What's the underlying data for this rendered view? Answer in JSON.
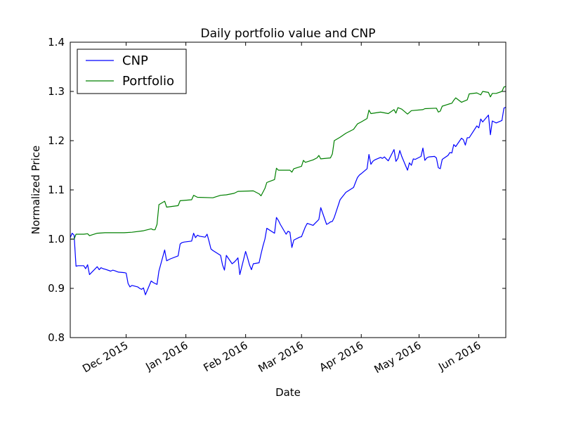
{
  "chart_data": {
    "type": "line",
    "title": "Daily portfolio value and CNP",
    "xlabel": "Date",
    "ylabel": "Normalized Price",
    "x_range": [
      "2015-11-02",
      "2016-06-15"
    ],
    "ylim": [
      0.8,
      1.4
    ],
    "y_ticks": [
      0.8,
      0.9,
      1.0,
      1.1,
      1.2,
      1.3,
      1.4
    ],
    "y_tick_labels": [
      "0.8",
      "0.9",
      "1.0",
      "1.1",
      "1.2",
      "1.3",
      "1.4"
    ],
    "x_ticks": [
      "2015-12-01",
      "2016-01-01",
      "2016-02-01",
      "2016-03-01",
      "2016-04-01",
      "2016-05-01",
      "2016-06-01"
    ],
    "x_tick_labels": [
      "Dec 2015",
      "Jan 2016",
      "Feb 2016",
      "Mar 2016",
      "Apr 2016",
      "May 2016",
      "Jun 2016"
    ],
    "grid": false,
    "legend": "upper-left",
    "series": [
      {
        "name": "CNP",
        "color": "#0000ff",
        "points": [
          [
            "2015-11-02",
            1.003
          ],
          [
            "2015-11-03",
            1.012
          ],
          [
            "2015-11-04",
            1.008
          ],
          [
            "2015-11-05",
            0.945
          ],
          [
            "2015-11-06",
            0.946
          ],
          [
            "2015-11-09",
            0.946
          ],
          [
            "2015-11-10",
            0.94
          ],
          [
            "2015-11-11",
            0.948
          ],
          [
            "2015-11-12",
            0.928
          ],
          [
            "2015-11-13",
            0.932
          ],
          [
            "2015-11-16",
            0.944
          ],
          [
            "2015-11-17",
            0.938
          ],
          [
            "2015-11-18",
            0.942
          ],
          [
            "2015-11-19",
            0.94
          ],
          [
            "2015-11-20",
            0.939
          ],
          [
            "2015-11-23",
            0.935
          ],
          [
            "2015-11-24",
            0.937
          ],
          [
            "2015-11-25",
            0.936
          ],
          [
            "2015-11-27",
            0.933
          ],
          [
            "2015-11-30",
            0.932
          ],
          [
            "2015-12-01",
            0.931
          ],
          [
            "2015-12-02",
            0.91
          ],
          [
            "2015-12-03",
            0.903
          ],
          [
            "2015-12-04",
            0.906
          ],
          [
            "2015-12-07",
            0.903
          ],
          [
            "2015-12-08",
            0.9
          ],
          [
            "2015-12-09",
            0.898
          ],
          [
            "2015-12-10",
            0.901
          ],
          [
            "2015-12-11",
            0.887
          ],
          [
            "2015-12-14",
            0.915
          ],
          [
            "2015-12-15",
            0.912
          ],
          [
            "2015-12-16",
            0.91
          ],
          [
            "2015-12-17",
            0.908
          ],
          [
            "2015-12-18",
            0.935
          ],
          [
            "2015-12-21",
            0.978
          ],
          [
            "2015-12-22",
            0.956
          ],
          [
            "2015-12-23",
            0.958
          ],
          [
            "2015-12-24",
            0.96
          ],
          [
            "2015-12-28",
            0.966
          ],
          [
            "2015-12-29",
            0.99
          ],
          [
            "2015-12-30",
            0.993
          ],
          [
            "2015-12-31",
            0.994
          ],
          [
            "2016-01-04",
            0.996
          ],
          [
            "2016-01-05",
            1.012
          ],
          [
            "2016-01-06",
            1.003
          ],
          [
            "2016-01-07",
            1.008
          ],
          [
            "2016-01-08",
            1.006
          ],
          [
            "2016-01-11",
            1.004
          ],
          [
            "2016-01-12",
            1.01
          ],
          [
            "2016-01-13",
            0.996
          ],
          [
            "2016-01-14",
            0.98
          ],
          [
            "2016-01-15",
            0.977
          ],
          [
            "2016-01-19",
            0.967
          ],
          [
            "2016-01-20",
            0.948
          ],
          [
            "2016-01-21",
            0.937
          ],
          [
            "2016-01-22",
            0.967
          ],
          [
            "2016-01-25",
            0.95
          ],
          [
            "2016-01-26",
            0.953
          ],
          [
            "2016-01-27",
            0.957
          ],
          [
            "2016-01-28",
            0.962
          ],
          [
            "2016-01-29",
            0.928
          ],
          [
            "2016-02-01",
            0.975
          ],
          [
            "2016-02-02",
            0.962
          ],
          [
            "2016-02-03",
            0.948
          ],
          [
            "2016-02-04",
            0.938
          ],
          [
            "2016-02-05",
            0.95
          ],
          [
            "2016-02-08",
            0.952
          ],
          [
            "2016-02-09",
            0.97
          ],
          [
            "2016-02-10",
            0.986
          ],
          [
            "2016-02-11",
            1.0
          ],
          [
            "2016-02-12",
            1.022
          ],
          [
            "2016-02-16",
            1.012
          ],
          [
            "2016-02-17",
            1.044
          ],
          [
            "2016-02-18",
            1.038
          ],
          [
            "2016-02-19",
            1.03
          ],
          [
            "2016-02-22",
            1.01
          ],
          [
            "2016-02-23",
            1.016
          ],
          [
            "2016-02-24",
            1.014
          ],
          [
            "2016-02-25",
            0.983
          ],
          [
            "2016-02-26",
            0.998
          ],
          [
            "2016-02-29",
            1.004
          ],
          [
            "2016-03-01",
            1.005
          ],
          [
            "2016-03-02",
            1.015
          ],
          [
            "2016-03-03",
            1.025
          ],
          [
            "2016-03-04",
            1.032
          ],
          [
            "2016-03-07",
            1.028
          ],
          [
            "2016-03-08",
            1.032
          ],
          [
            "2016-03-09",
            1.036
          ],
          [
            "2016-03-10",
            1.04
          ],
          [
            "2016-03-11",
            1.064
          ],
          [
            "2016-03-14",
            1.03
          ],
          [
            "2016-03-15",
            1.032
          ],
          [
            "2016-03-16",
            1.035
          ],
          [
            "2016-03-17",
            1.036
          ],
          [
            "2016-03-18",
            1.044
          ],
          [
            "2016-03-21",
            1.08
          ],
          [
            "2016-03-22",
            1.085
          ],
          [
            "2016-03-23",
            1.09
          ],
          [
            "2016-03-24",
            1.095
          ],
          [
            "2016-03-28",
            1.105
          ],
          [
            "2016-03-29",
            1.115
          ],
          [
            "2016-03-30",
            1.125
          ],
          [
            "2016-03-31",
            1.13
          ],
          [
            "2016-04-01",
            1.133
          ],
          [
            "2016-04-04",
            1.143
          ],
          [
            "2016-04-05",
            1.172
          ],
          [
            "2016-04-06",
            1.152
          ],
          [
            "2016-04-07",
            1.158
          ],
          [
            "2016-04-08",
            1.161
          ],
          [
            "2016-04-11",
            1.166
          ],
          [
            "2016-04-12",
            1.164
          ],
          [
            "2016-04-13",
            1.167
          ],
          [
            "2016-04-14",
            1.163
          ],
          [
            "2016-04-15",
            1.159
          ],
          [
            "2016-04-18",
            1.182
          ],
          [
            "2016-04-19",
            1.158
          ],
          [
            "2016-04-20",
            1.164
          ],
          [
            "2016-04-21",
            1.18
          ],
          [
            "2016-04-22",
            1.168
          ],
          [
            "2016-04-25",
            1.14
          ],
          [
            "2016-04-26",
            1.155
          ],
          [
            "2016-04-27",
            1.15
          ],
          [
            "2016-04-28",
            1.163
          ],
          [
            "2016-04-29",
            1.162
          ],
          [
            "2016-05-02",
            1.168
          ],
          [
            "2016-05-03",
            1.185
          ],
          [
            "2016-05-04",
            1.16
          ],
          [
            "2016-05-05",
            1.165
          ],
          [
            "2016-05-06",
            1.167
          ],
          [
            "2016-05-09",
            1.168
          ],
          [
            "2016-05-10",
            1.165
          ],
          [
            "2016-05-11",
            1.145
          ],
          [
            "2016-05-12",
            1.143
          ],
          [
            "2016-05-13",
            1.162
          ],
          [
            "2016-05-16",
            1.17
          ],
          [
            "2016-05-17",
            1.176
          ],
          [
            "2016-05-18",
            1.175
          ],
          [
            "2016-05-19",
            1.192
          ],
          [
            "2016-05-20",
            1.188
          ],
          [
            "2016-05-23",
            1.205
          ],
          [
            "2016-05-24",
            1.202
          ],
          [
            "2016-05-25",
            1.191
          ],
          [
            "2016-05-26",
            1.206
          ],
          [
            "2016-05-27",
            1.206
          ],
          [
            "2016-05-31",
            1.23
          ],
          [
            "2016-06-01",
            1.226
          ],
          [
            "2016-06-02",
            1.244
          ],
          [
            "2016-06-03",
            1.238
          ],
          [
            "2016-06-06",
            1.252
          ],
          [
            "2016-06-07",
            1.212
          ],
          [
            "2016-06-08",
            1.24
          ],
          [
            "2016-06-09",
            1.238
          ],
          [
            "2016-06-10",
            1.236
          ],
          [
            "2016-06-13",
            1.241
          ],
          [
            "2016-06-14",
            1.266
          ],
          [
            "2016-06-15",
            1.268
          ]
        ]
      },
      {
        "name": "Portfolio",
        "color": "#008000",
        "points": [
          [
            "2015-11-02",
            1.0
          ],
          [
            "2015-11-04",
            1.0
          ],
          [
            "2015-11-05",
            1.01
          ],
          [
            "2015-11-09",
            1.01
          ],
          [
            "2015-11-11",
            1.011
          ],
          [
            "2015-11-12",
            1.007
          ],
          [
            "2015-11-16",
            1.012
          ],
          [
            "2015-11-20",
            1.013
          ],
          [
            "2015-11-30",
            1.013
          ],
          [
            "2015-12-04",
            1.014
          ],
          [
            "2015-12-10",
            1.017
          ],
          [
            "2015-12-14",
            1.021
          ],
          [
            "2015-12-15",
            1.019
          ],
          [
            "2015-12-16",
            1.019
          ],
          [
            "2015-12-17",
            1.03
          ],
          [
            "2015-12-18",
            1.07
          ],
          [
            "2015-12-21",
            1.077
          ],
          [
            "2015-12-22",
            1.065
          ],
          [
            "2015-12-28",
            1.068
          ],
          [
            "2015-12-29",
            1.078
          ],
          [
            "2016-01-04",
            1.08
          ],
          [
            "2016-01-05",
            1.089
          ],
          [
            "2016-01-07",
            1.085
          ],
          [
            "2016-01-15",
            1.084
          ],
          [
            "2016-01-19",
            1.089
          ],
          [
            "2016-01-22",
            1.09
          ],
          [
            "2016-01-26",
            1.093
          ],
          [
            "2016-01-28",
            1.097
          ],
          [
            "2016-02-05",
            1.098
          ],
          [
            "2016-02-08",
            1.092
          ],
          [
            "2016-02-09",
            1.088
          ],
          [
            "2016-02-11",
            1.103
          ],
          [
            "2016-02-12",
            1.115
          ],
          [
            "2016-02-16",
            1.121
          ],
          [
            "2016-02-17",
            1.144
          ],
          [
            "2016-02-18",
            1.14
          ],
          [
            "2016-02-24",
            1.14
          ],
          [
            "2016-02-25",
            1.136
          ],
          [
            "2016-02-26",
            1.143
          ],
          [
            "2016-03-01",
            1.148
          ],
          [
            "2016-03-02",
            1.16
          ],
          [
            "2016-03-03",
            1.156
          ],
          [
            "2016-03-07",
            1.161
          ],
          [
            "2016-03-09",
            1.165
          ],
          [
            "2016-03-10",
            1.17
          ],
          [
            "2016-03-11",
            1.163
          ],
          [
            "2016-03-16",
            1.165
          ],
          [
            "2016-03-17",
            1.173
          ],
          [
            "2016-03-18",
            1.2
          ],
          [
            "2016-03-21",
            1.207
          ],
          [
            "2016-03-24",
            1.215
          ],
          [
            "2016-03-28",
            1.223
          ],
          [
            "2016-03-30",
            1.234
          ],
          [
            "2016-04-01",
            1.238
          ],
          [
            "2016-04-04",
            1.245
          ],
          [
            "2016-04-05",
            1.262
          ],
          [
            "2016-04-06",
            1.255
          ],
          [
            "2016-04-11",
            1.258
          ],
          [
            "2016-04-15",
            1.255
          ],
          [
            "2016-04-18",
            1.263
          ],
          [
            "2016-04-19",
            1.256
          ],
          [
            "2016-04-20",
            1.267
          ],
          [
            "2016-04-22",
            1.264
          ],
          [
            "2016-04-25",
            1.254
          ],
          [
            "2016-04-27",
            1.261
          ],
          [
            "2016-05-03",
            1.263
          ],
          [
            "2016-05-04",
            1.265
          ],
          [
            "2016-05-10",
            1.266
          ],
          [
            "2016-05-11",
            1.258
          ],
          [
            "2016-05-12",
            1.26
          ],
          [
            "2016-05-13",
            1.27
          ],
          [
            "2016-05-17",
            1.275
          ],
          [
            "2016-05-18",
            1.276
          ],
          [
            "2016-05-19",
            1.282
          ],
          [
            "2016-05-20",
            1.287
          ],
          [
            "2016-05-23",
            1.278
          ],
          [
            "2016-05-26",
            1.283
          ],
          [
            "2016-05-27",
            1.295
          ],
          [
            "2016-05-31",
            1.297
          ],
          [
            "2016-06-02",
            1.293
          ],
          [
            "2016-06-03",
            1.3
          ],
          [
            "2016-06-06",
            1.298
          ],
          [
            "2016-06-07",
            1.289
          ],
          [
            "2016-06-08",
            1.296
          ],
          [
            "2016-06-10",
            1.296
          ],
          [
            "2016-06-13",
            1.3
          ],
          [
            "2016-06-14",
            1.309
          ],
          [
            "2016-06-15",
            1.31
          ]
        ]
      }
    ]
  }
}
